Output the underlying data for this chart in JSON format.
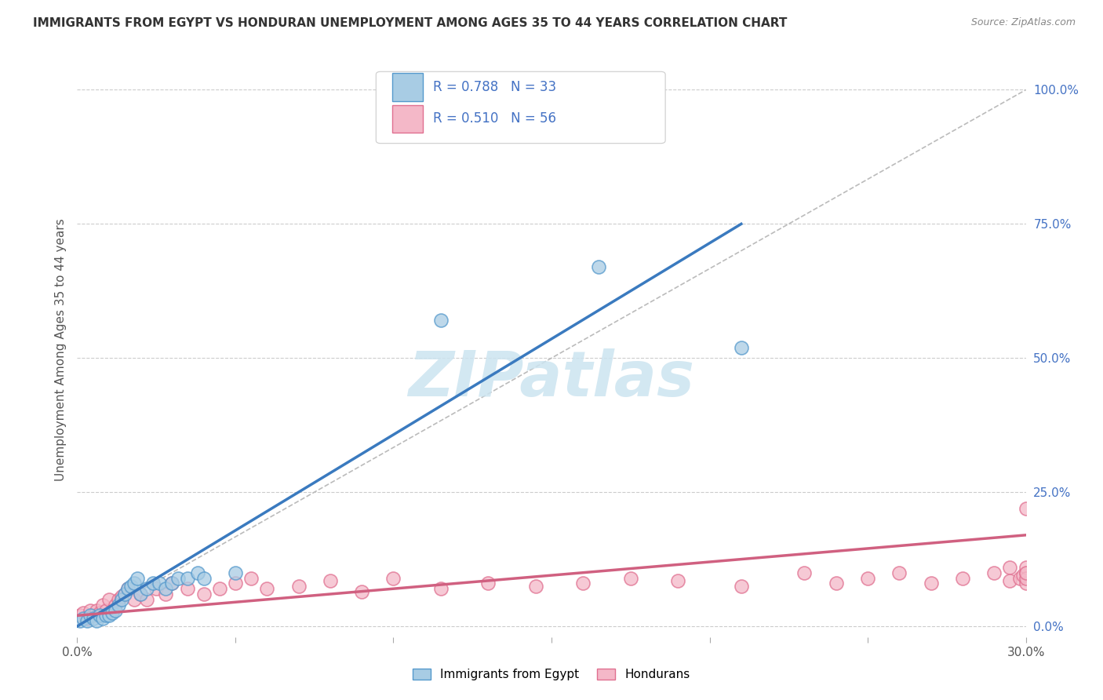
{
  "title": "IMMIGRANTS FROM EGYPT VS HONDURAN UNEMPLOYMENT AMONG AGES 35 TO 44 YEARS CORRELATION CHART",
  "source": "Source: ZipAtlas.com",
  "ylabel": "Unemployment Among Ages 35 to 44 years",
  "ytick_labels": [
    "0.0%",
    "25.0%",
    "50.0%",
    "75.0%",
    "100.0%"
  ],
  "ytick_vals": [
    0.0,
    0.25,
    0.5,
    0.75,
    1.0
  ],
  "xlim": [
    0.0,
    0.3
  ],
  "ylim": [
    -0.02,
    1.05
  ],
  "legend_label1": "Immigrants from Egypt",
  "legend_label2": "Hondurans",
  "R1": 0.788,
  "N1": 33,
  "R2": 0.51,
  "N2": 56,
  "color_blue": "#a8cce4",
  "color_pink": "#f4b8c8",
  "color_blue_dark": "#5599cc",
  "color_pink_dark": "#e07090",
  "color_blue_line": "#3a7abf",
  "color_pink_line": "#d06080",
  "color_diag": "#b0b0b0",
  "watermark_color": "#cce4f0",
  "egypt_line_x": [
    0.0,
    0.21
  ],
  "egypt_line_y": [
    0.0,
    0.75
  ],
  "honduran_line_x": [
    0.0,
    0.3
  ],
  "honduran_line_y": [
    0.02,
    0.17
  ],
  "egypt_x": [
    0.001,
    0.002,
    0.003,
    0.004,
    0.005,
    0.006,
    0.007,
    0.008,
    0.009,
    0.01,
    0.011,
    0.012,
    0.013,
    0.014,
    0.015,
    0.016,
    0.017,
    0.018,
    0.019,
    0.02,
    0.022,
    0.024,
    0.026,
    0.028,
    0.03,
    0.032,
    0.035,
    0.038,
    0.04,
    0.05,
    0.115,
    0.165,
    0.21
  ],
  "egypt_y": [
    0.01,
    0.015,
    0.01,
    0.02,
    0.015,
    0.01,
    0.02,
    0.015,
    0.02,
    0.02,
    0.025,
    0.03,
    0.04,
    0.05,
    0.06,
    0.07,
    0.075,
    0.08,
    0.09,
    0.06,
    0.07,
    0.08,
    0.08,
    0.07,
    0.08,
    0.09,
    0.09,
    0.1,
    0.09,
    0.1,
    0.57,
    0.67,
    0.52
  ],
  "honduran_x": [
    0.001,
    0.002,
    0.003,
    0.004,
    0.005,
    0.006,
    0.007,
    0.008,
    0.009,
    0.01,
    0.011,
    0.012,
    0.013,
    0.014,
    0.015,
    0.016,
    0.018,
    0.02,
    0.022,
    0.025,
    0.028,
    0.03,
    0.035,
    0.04,
    0.045,
    0.05,
    0.055,
    0.06,
    0.07,
    0.08,
    0.09,
    0.1,
    0.115,
    0.13,
    0.145,
    0.16,
    0.175,
    0.19,
    0.21,
    0.23,
    0.24,
    0.25,
    0.26,
    0.27,
    0.28,
    0.29,
    0.295,
    0.295,
    0.298,
    0.299,
    0.3,
    0.3,
    0.3,
    0.3,
    0.3,
    0.3
  ],
  "honduran_y": [
    0.02,
    0.025,
    0.015,
    0.03,
    0.02,
    0.03,
    0.025,
    0.04,
    0.03,
    0.05,
    0.03,
    0.04,
    0.05,
    0.055,
    0.06,
    0.07,
    0.05,
    0.06,
    0.05,
    0.07,
    0.06,
    0.08,
    0.07,
    0.06,
    0.07,
    0.08,
    0.09,
    0.07,
    0.075,
    0.085,
    0.065,
    0.09,
    0.07,
    0.08,
    0.075,
    0.08,
    0.09,
    0.085,
    0.075,
    0.1,
    0.08,
    0.09,
    0.1,
    0.08,
    0.09,
    0.1,
    0.11,
    0.085,
    0.09,
    0.095,
    0.1,
    0.11,
    0.08,
    0.09,
    0.1,
    0.22
  ]
}
